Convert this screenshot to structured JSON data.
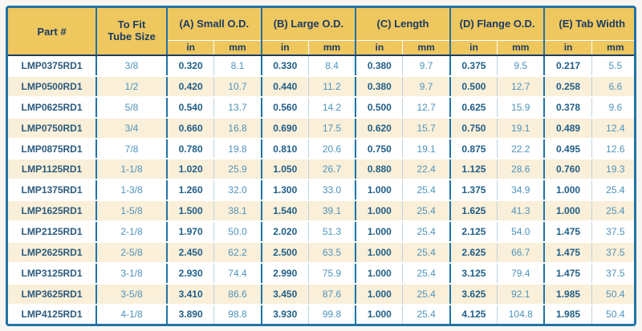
{
  "colors": {
    "border_blue": "#2173A5",
    "header_gold": "#EFC75F",
    "navy_text": "#1B3C62",
    "part_text": "#2B5B7E",
    "value_in": "#1F5E88",
    "value_mm": "#4E93BC",
    "light_line": "#BDD3DF",
    "stripe_cream": "#FAEFD8"
  },
  "table": {
    "header": {
      "part_label": "Part #",
      "tube_label_line1": "To Fit",
      "tube_label_line2": "Tube Size",
      "groups": [
        {
          "label": "(A) Small O.D."
        },
        {
          "label": "(B) Large O.D."
        },
        {
          "label": "(C) Length"
        },
        {
          "label": "(D) Flange O.D."
        },
        {
          "label": "(E) Tab Width"
        }
      ],
      "unit_in": "in",
      "unit_mm": "mm"
    },
    "rows": [
      {
        "part": "LMP0375RD1",
        "tube": "3/8",
        "values": [
          "0.320",
          "8.1",
          "0.330",
          "8.4",
          "0.380",
          "9.7",
          "0.375",
          "9.5",
          "0.217",
          "5.5"
        ]
      },
      {
        "part": "LMP0500RD1",
        "tube": "1/2",
        "values": [
          "0.420",
          "10.7",
          "0.440",
          "11.2",
          "0.380",
          "9.7",
          "0.500",
          "12.7",
          "0.258",
          "6.6"
        ]
      },
      {
        "part": "LMP0625RD1",
        "tube": "5/8",
        "values": [
          "0.540",
          "13.7",
          "0.560",
          "14.2",
          "0.500",
          "12.7",
          "0.625",
          "15.9",
          "0.378",
          "9.6"
        ]
      },
      {
        "part": "LMP0750RD1",
        "tube": "3/4",
        "values": [
          "0.660",
          "16.8",
          "0.690",
          "17.5",
          "0.620",
          "15.7",
          "0.750",
          "19.1",
          "0.489",
          "12.4"
        ]
      },
      {
        "part": "LMP0875RD1",
        "tube": "7/8",
        "values": [
          "0.780",
          "19.8",
          "0.810",
          "20.6",
          "0.750",
          "19.1",
          "0.875",
          "22.2",
          "0.495",
          "12.6"
        ]
      },
      {
        "part": "LMP1125RD1",
        "tube": "1-1/8",
        "values": [
          "1.020",
          "25.9",
          "1.050",
          "26.7",
          "0.880",
          "22.4",
          "1.125",
          "28.6",
          "0.760",
          "19.3"
        ]
      },
      {
        "part": "LMP1375RD1",
        "tube": "1-3/8",
        "values": [
          "1.260",
          "32.0",
          "1.300",
          "33.0",
          "1.000",
          "25.4",
          "1.375",
          "34.9",
          "1.000",
          "25.4"
        ]
      },
      {
        "part": "LMP1625RD1",
        "tube": "1-5/8",
        "values": [
          "1.500",
          "38.1",
          "1.540",
          "39.1",
          "1.000",
          "25.4",
          "1.625",
          "41.3",
          "1.000",
          "25.4"
        ]
      },
      {
        "part": "LMP2125RD1",
        "tube": "2-1/8",
        "values": [
          "1.970",
          "50.0",
          "2.020",
          "51.3",
          "1.000",
          "25.4",
          "2.125",
          "54.0",
          "1.475",
          "37.5"
        ]
      },
      {
        "part": "LMP2625RD1",
        "tube": "2-5/8",
        "values": [
          "2.450",
          "62.2",
          "2.500",
          "63.5",
          "1.000",
          "25.4",
          "2.625",
          "66.7",
          "1.475",
          "37.5"
        ]
      },
      {
        "part": "LMP3125RD1",
        "tube": "3-1/8",
        "values": [
          "2.930",
          "74.4",
          "2.990",
          "75.9",
          "1.000",
          "25.4",
          "3.125",
          "79.4",
          "1.475",
          "37.5"
        ]
      },
      {
        "part": "LMP3625RD1",
        "tube": "3-5/8",
        "values": [
          "3.410",
          "86.6",
          "3.450",
          "87.6",
          "1.000",
          "25.4",
          "3.625",
          "92.1",
          "1.985",
          "50.4"
        ]
      },
      {
        "part": "LMP4125RD1",
        "tube": "4-1/8",
        "values": [
          "3.890",
          "98.8",
          "3.930",
          "99.8",
          "1.000",
          "25.4",
          "4.125",
          "104.8",
          "1.985",
          "50.4"
        ]
      }
    ]
  }
}
